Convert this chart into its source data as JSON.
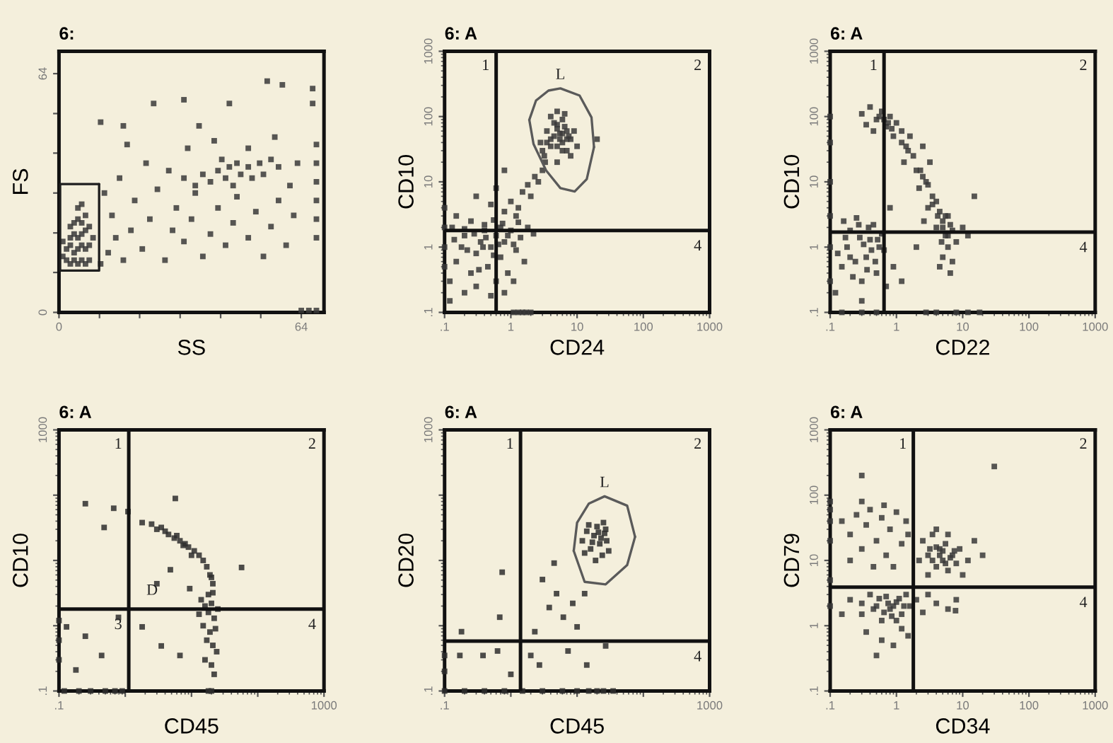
{
  "chart_data": [
    {
      "type": "scatter",
      "title": "6:",
      "xlabel": "SS",
      "ylabel": "FS",
      "xlim": [
        0,
        70
      ],
      "ylim": [
        0,
        70
      ],
      "xticks": [
        {
          "value": 0,
          "label": "0"
        },
        {
          "value": 10.7,
          "label": null
        },
        {
          "value": 21.3,
          "label": null
        },
        {
          "value": 32,
          "label": null
        },
        {
          "value": 42.7,
          "label": null
        },
        {
          "value": 53.3,
          "label": null
        },
        {
          "value": 64,
          "label": "64"
        }
      ],
      "yticks": [
        {
          "value": 0,
          "label": "0"
        },
        {
          "value": 10.7,
          "label": null
        },
        {
          "value": 21.3,
          "label": null
        },
        {
          "value": 32,
          "label": null
        },
        {
          "value": 42.7,
          "label": null
        },
        {
          "value": 53.3,
          "label": null
        },
        {
          "value": 64,
          "label": "64"
        }
      ],
      "series": [
        {
          "marker": "square",
          "color": "#3a3a3a",
          "x": [
            2,
            3,
            4,
            5,
            6,
            7,
            8,
            2,
            3,
            4,
            5,
            6,
            7,
            8,
            3,
            4,
            5,
            6,
            7,
            4,
            5,
            6,
            7,
            3,
            5,
            6,
            8,
            1,
            1,
            9,
            11,
            13,
            15,
            14,
            17,
            19,
            20,
            22,
            24,
            26,
            28,
            30,
            31,
            33,
            35,
            36,
            38,
            40,
            42,
            44,
            46,
            47,
            50,
            52,
            54,
            56,
            58,
            60,
            62,
            16,
            23,
            29,
            12,
            18,
            34,
            41,
            50,
            57,
            63,
            61,
            33,
            36,
            38,
            40,
            42,
            44,
            45,
            46,
            48,
            50,
            51,
            53,
            54,
            56,
            58,
            43,
            47,
            68,
            68,
            68,
            68,
            68,
            68,
            17,
            25,
            33,
            45,
            55,
            59,
            67,
            67,
            11,
            37,
            66,
            68,
            64
          ],
          "values": [
            14,
            13,
            14,
            13,
            14,
            13,
            14,
            17,
            18,
            16,
            17,
            18,
            17,
            18,
            20,
            21,
            20,
            21,
            22,
            24,
            25,
            24,
            26,
            23,
            28,
            29,
            23,
            15,
            19,
            20,
            13,
            16,
            20,
            26,
            14,
            22,
            30,
            17,
            25,
            33,
            14,
            22,
            28,
            19,
            25,
            32,
            15,
            21,
            28,
            18,
            24,
            31,
            20,
            27,
            15,
            23,
            30,
            18,
            26,
            36,
            40,
            38,
            32,
            45,
            44,
            46,
            44,
            47,
            40,
            34,
            36,
            34,
            37,
            35,
            38,
            36,
            39,
            34,
            37,
            39,
            36,
            40,
            37,
            41,
            39,
            41,
            40,
            20,
            25,
            30,
            35,
            40,
            45,
            50,
            56,
            57,
            56,
            62,
            61,
            56,
            60,
            51,
            50,
            0.5,
            0.5,
            0.5
          ]
        },
        {
          "type": "line",
          "line_style": "solid",
          "color": "#1e1e1e",
          "x": [
            0.3,
            0.3,
            10.6
          ],
          "values": [
            11.2,
            34.4,
            34.4
          ]
        },
        {
          "type": "line",
          "line_style": "solid",
          "color": "#1e1e1e",
          "x": [
            0.3,
            10.6,
            10.6
          ],
          "values": [
            11.2,
            11.2,
            34.4
          ]
        }
      ]
    },
    {
      "type": "scatter",
      "title": "6: A",
      "xlabel": "CD24",
      "ylabel": "CD10",
      "log": "xy",
      "xlim": [
        0.1,
        1000
      ],
      "ylim": [
        0.1,
        1000
      ],
      "xticks": [
        {
          "value": 0.1,
          "label": ".1"
        },
        1,
        10,
        100,
        1000
      ],
      "yticks": [
        {
          "value": 0.1,
          "label": ".1"
        },
        1,
        10,
        100,
        1000
      ],
      "series": [
        {
          "marker": "square",
          "color": "#3a3a3a",
          "x": [
            0.12,
            0.15,
            0.18,
            0.2,
            0.13,
            0.25,
            0.3,
            0.35,
            0.4,
            0.45,
            0.5,
            0.6,
            0.7,
            0.8,
            1.0,
            1.2,
            1.4,
            1.6,
            0.2,
            0.3,
            0.6,
            0.9,
            1.1,
            0.15,
            0.25,
            0.4,
            0.55,
            0.75,
            1.3,
            1.8,
            2.2,
            0.1,
            0.1,
            0.1,
            0.1,
            0.12,
            0.5,
            0.8,
            0.8,
            1.0,
            1.3,
            1.5,
            1.8,
            2.0,
            2.3,
            2.6,
            3.0,
            0.5,
            0.3,
            0.6,
            3.3,
            1.2,
            3,
            3.5,
            4,
            4.5,
            5,
            5.5,
            6,
            6.5,
            7,
            7.5,
            8,
            9,
            10,
            4,
            5,
            6,
            3.2,
            8,
            5,
            6.5,
            2.8,
            1.1,
            1.3,
            1.5,
            1.7,
            2.0,
            20,
            0.8,
            0.14,
            0.22,
            0.28,
            0.33,
            0.38,
            0.42,
            0.55,
            0.65,
            0.9,
            1.1,
            0.2,
            0.7,
            4.5,
            5,
            5.5,
            6,
            7,
            6,
            4,
            5,
            7,
            3.5
          ],
          "values": [
            0.3,
            0.6,
            1.0,
            1.5,
            2.0,
            0.4,
            0.8,
            1.2,
            1.8,
            0.5,
            1.0,
            1.5,
            0.7,
            1.2,
            1.8,
            0.9,
            1.4,
            0.6,
            0.2,
            0.25,
            0.3,
            0.4,
            0.3,
            3,
            2.5,
            2.2,
            2.6,
            2.3,
            2.4,
            2.0,
            1.6,
            0.5,
            1.0,
            2.0,
            4.0,
            0.15,
            0.18,
            0.2,
            3.5,
            5,
            4,
            7,
            9,
            6,
            12,
            10,
            15,
            4.5,
            6,
            8,
            20,
            3,
            30,
            60,
            45,
            80,
            35,
            55,
            40,
            70,
            30,
            50,
            45,
            60,
            35,
            100,
            120,
            90,
            25,
            25,
            20,
            110,
            40,
            0.1,
            0.1,
            0.1,
            0.1,
            0.1,
            45,
            15,
            1.3,
            0.9,
            1.6,
            0.45,
            1.0,
            1.4,
            0.75,
            1.1,
            1.5,
            1.1,
            1.9,
            2.0,
            50,
            65,
            45,
            55,
            45,
            30,
            35,
            75,
            60,
            40
          ]
        },
        {
          "type": "line",
          "line_style": "solid",
          "color": "#5a5a5a",
          "x": [
            1.9,
            2.4,
            3.7,
            5.6,
            10.9,
            16.5,
            18
          ],
          "values": [
            89,
            176,
            250,
            270,
            210,
            97,
            34
          ]
        },
        {
          "type": "line",
          "line_style": "solid",
          "color": "#5a5a5a",
          "x": [
            1.9,
            2.2,
            3.4,
            5.6,
            9.2,
            14,
            18
          ],
          "values": [
            89,
            38,
            15,
            8,
            7.1,
            11,
            34
          ]
        }
      ],
      "ref_lines": [
        {
          "axis": "x",
          "value": 0.6,
          "color": "#111111"
        },
        {
          "axis": "y",
          "value": 1.8,
          "color": "#111111"
        }
      ],
      "annotations": [
        {
          "text": "L",
          "x": 5.6,
          "y": 270
        },
        "1",
        "2",
        "4"
      ]
    },
    {
      "type": "scatter",
      "title": "6: A",
      "xlabel": "CD22",
      "ylabel": "CD10",
      "log": "xy",
      "xlim": [
        0.1,
        1000
      ],
      "ylim": [
        0.1,
        1000
      ],
      "xticks": [
        {
          "value": 0.1,
          "label": ".1"
        },
        1,
        10,
        100,
        1000
      ],
      "yticks": [
        {
          "value": 0.1,
          "label": ".1"
        },
        1,
        10,
        100,
        1000
      ],
      "series": [
        {
          "marker": "square",
          "color": "#3a3a3a",
          "x": [
            0.12,
            0.15,
            0.18,
            0.2,
            0.25,
            0.3,
            0.35,
            0.4,
            0.45,
            0.5,
            0.55,
            0.6,
            0.22,
            0.28,
            0.38,
            0.16,
            0.48,
            0.3,
            0.2,
            0.65,
            0.7,
            0.9,
            0.1,
            0.1,
            0.1,
            0.1,
            0.1,
            0.1,
            0.3,
            0.4,
            0.5,
            0.6,
            0.7,
            0.8,
            0.45,
            1.0,
            0.9,
            1.2,
            0.35,
            1.2,
            1.5,
            1.3,
            1.8,
            2.0,
            2.5,
            2.2,
            3.0,
            3.5,
            3.0,
            4.0,
            4.5,
            5.0,
            4.0,
            6.0,
            5.5,
            7.0,
            6.0,
            5.0,
            7.0,
            8,
            4.5,
            10,
            12,
            6.5,
            1.6,
            2.5,
            3.2,
            0.15,
            0.3,
            0.5,
            2.8,
            4,
            8,
            12,
            18,
            0.8,
            1.2,
            2,
            15,
            2.6,
            0.13,
            0.17,
            0.24,
            0.32,
            0.42,
            0.52,
            0.27,
            0.36,
            0.55,
            0.65,
            0.75,
            0.85,
            3.5,
            4.2,
            5,
            5.5,
            6.5,
            4.8,
            6,
            2.8,
            2.3,
            1.4
          ],
          "values": [
            0.2,
            0.5,
            1.0,
            1.8,
            2.8,
            0.3,
            0.7,
            1.3,
            2.2,
            0.4,
            1.0,
            1.6,
            0.35,
            1.4,
            2.0,
            2.5,
            0.6,
            0.15,
            0.7,
            0.9,
            0.25,
            0.5,
            0.3,
            1,
            3,
            10,
            40,
            100,
            110,
            140,
            90,
            120,
            70,
            100,
            60,
            80,
            50,
            60,
            75,
            40,
            30,
            20,
            25,
            15,
            12,
            8,
            9,
            6,
            4,
            5,
            3.5,
            2.5,
            2.0,
            3,
            1.5,
            1.8,
            1.0,
            0.7,
            0.6,
            1.2,
            0.5,
            2,
            1.5,
            0.4,
            50,
            35,
            20,
            0.1,
            0.1,
            0.1,
            0.1,
            0.1,
            0.1,
            0.1,
            0.1,
            4,
            0.3,
            1,
            6,
            2.5,
            0.8,
            1.4,
            0.6,
            1.1,
            0.9,
            1.3,
            2.2,
            0.45,
            100,
            90,
            80,
            65,
            4.5,
            3,
            2,
            3,
            2.2,
            1.2,
            1.5,
            10,
            15,
            35
          ]
        }
      ],
      "ref_lines": [
        {
          "axis": "x",
          "value": 0.65,
          "color": "#111111"
        },
        {
          "axis": "y",
          "value": 1.7,
          "color": "#111111"
        }
      ],
      "annotations": [
        "1",
        "2",
        "4"
      ]
    },
    {
      "type": "scatter",
      "title": "6: A",
      "xlabel": "CD45",
      "ylabel": "CD10",
      "log": "xy",
      "xlim": [
        0.1,
        1000
      ],
      "ylim": [
        0.1,
        1000
      ],
      "xticks": [
        {
          "value": 0.1,
          "label": ".1"
        },
        {
          "value": 1,
          "label": null
        },
        {
          "value": 10,
          "label": null
        },
        {
          "value": 100,
          "label": null
        },
        {
          "value": 1000,
          "label": "1000"
        }
      ],
      "yticks": [
        {
          "value": 0.1,
          "label": ".1"
        },
        {
          "value": 1,
          "label": null
        },
        {
          "value": 10,
          "label": null
        },
        {
          "value": 100,
          "label": null
        },
        {
          "value": 1000,
          "label": "1000"
        }
      ],
      "series": [
        {
          "marker": "square",
          "color": "#2e2e2e",
          "x": [
            14,
            16,
            18,
            20,
            22,
            15,
            19,
            23,
            17,
            21,
            24,
            16,
            20,
            22,
            25,
            13,
            18,
            21,
            1.8,
            2.5,
            3.0,
            3.5,
            4.5,
            5.5,
            6.7,
            8,
            9,
            11,
            13,
            15,
            17,
            19,
            21,
            20,
            4,
            6,
            7.5,
            10,
            0.25,
            0.48,
            0.67,
            1.1,
            5.7,
            3.0,
            4.8,
            9.4,
            1.8,
            3.5,
            6.7,
            57,
            0.13,
            0.25,
            0.44,
            0.79,
            0.18,
            0.12,
            0.2,
            0.3,
            0.5,
            0.7,
            0.9,
            20,
            18,
            0.1,
            0.1,
            0.1
          ],
          "values": [
            2.5,
            2.0,
            1.6,
            2.2,
            1.3,
            1.0,
            0.8,
            0.9,
            0.6,
            0.5,
            0.4,
            0.3,
            0.25,
            0.18,
            1.8,
            1.5,
            3.0,
            3.2,
            38,
            36,
            30,
            32,
            25,
            22,
            20,
            18,
            16,
            14,
            12,
            10,
            8,
            6,
            4.4,
            5.5,
            28,
            24,
            17,
            12,
            74,
            32,
            63,
            56,
            89,
            4.4,
            7.2,
            3.7,
            0.96,
            0.49,
            0.35,
            7.8,
            0.96,
            0.69,
            0.35,
            1.34,
            0.21,
            0.1,
            0.1,
            0.1,
            0.1,
            0.1,
            0.1,
            0.1,
            0.1,
            0.3,
            0.6,
            1.2
          ]
        }
      ],
      "ref_lines": [
        {
          "axis": "x",
          "value": 1.13,
          "color": "#111111"
        },
        {
          "axis": "y",
          "value": 1.8,
          "color": "#111111"
        }
      ],
      "annotations": [
        "1",
        "2",
        "3",
        "4",
        {
          "text": "D",
          "x": 1.13,
          "y": 3.4
        }
      ]
    },
    {
      "type": "scatter",
      "title": "6: A",
      "xlabel": "CD45",
      "ylabel": "CD20",
      "log": "xy",
      "xlim": [
        0.1,
        1000
      ],
      "ylim": [
        0.1,
        1000
      ],
      "xticks": [
        {
          "value": 0.1,
          "label": ".1"
        },
        {
          "value": 1,
          "label": null
        },
        {
          "value": 10,
          "label": null
        },
        {
          "value": 100,
          "label": null
        },
        {
          "value": 1000,
          "label": "1000"
        }
      ],
      "yticks": [
        {
          "value": 0.1,
          "label": ".1"
        },
        {
          "value": 1,
          "label": null
        },
        {
          "value": 10,
          "label": null
        },
        {
          "value": 100,
          "label": null
        },
        {
          "value": 1000,
          "label": "1000"
        }
      ],
      "series": [
        {
          "marker": "square",
          "color": "#2e2e2e",
          "x": [
            12,
            14,
            16,
            18,
            20,
            22,
            24,
            26,
            28,
            30,
            15,
            19,
            25,
            17,
            21,
            23,
            13,
            27,
            4.5,
            3.0,
            4.9,
            6.2,
            8.6,
            10,
            3.8,
            13,
            2.3,
            0.74,
            0.68,
            0.18,
            0.17,
            0.38,
            0.63,
            2.0,
            2.7,
            7.3,
            14,
            27,
            1.0,
            0.1,
            0.2,
            0.4,
            0.8,
            1.5,
            3,
            6,
            10,
            15,
            20,
            25,
            35,
            0.1,
            0.1
          ],
          "values": [
            20,
            28,
            15,
            24,
            33,
            18,
            12,
            26,
            20,
            14,
            35,
            10,
            38,
            19,
            27,
            22,
            13,
            30,
            9.1,
            5.1,
            3.1,
            1.35,
            2.2,
            0.96,
            1.9,
            3.1,
            0.81,
            6.6,
            1.35,
            0.81,
            0.35,
            0.35,
            0.41,
            0.35,
            0.25,
            0.41,
            0.25,
            0.49,
            0.18,
            0.1,
            0.1,
            0.1,
            0.1,
            0.1,
            0.1,
            0.1,
            0.1,
            0.1,
            0.1,
            0.1,
            0.1,
            0.2,
            0.35
          ]
        },
        {
          "type": "line",
          "line_style": "solid",
          "color": "#5a5a5a",
          "x": [
            8.9,
            10,
            15,
            26,
            57,
            75
          ],
          "values": [
            14,
            38,
            74,
            96,
            69,
            23
          ]
        },
        {
          "type": "line",
          "line_style": "solid",
          "color": "#5a5a5a",
          "x": [
            8.9,
            13,
            27,
            57,
            75
          ],
          "values": [
            14,
            4.7,
            4.3,
            8.5,
            23
          ]
        }
      ],
      "ref_lines": [
        {
          "axis": "x",
          "value": 1.4,
          "color": "#111111"
        },
        {
          "axis": "y",
          "value": 0.58,
          "color": "#111111"
        }
      ],
      "annotations": [
        {
          "text": "L",
          "x": 26,
          "y": 96
        },
        "1",
        "2",
        "4"
      ]
    },
    {
      "type": "scatter",
      "title": "6: A",
      "xlabel": "CD34",
      "ylabel": "CD79",
      "log": "xy",
      "xlim": [
        0.1,
        1000
      ],
      "ylim": [
        0.1,
        1000
      ],
      "xticks": [
        {
          "value": 0.1,
          "label": ".1"
        },
        1,
        10,
        100,
        1000
      ],
      "yticks": [
        {
          "value": 0.1,
          "label": ".1"
        },
        1,
        10,
        100,
        1000
      ],
      "series": [
        {
          "marker": "square",
          "color": "#3a3a3a",
          "x": [
            0.15,
            0.2,
            0.25,
            0.3,
            0.35,
            0.4,
            0.5,
            0.6,
            0.7,
            0.8,
            1.0,
            1.2,
            1.4,
            0.45,
            0.2,
            0.9,
            1.5,
            0.3,
            0.65,
            2.5,
            3,
            3.5,
            4,
            4.5,
            5,
            5.5,
            6,
            7,
            8,
            9,
            4,
            3,
            10,
            2.2,
            6,
            12,
            15,
            20,
            0.2,
            0.3,
            0.4,
            0.5,
            0.6,
            0.7,
            0.8,
            1.0,
            1.2,
            1.4,
            1.6,
            0.35,
            0.6,
            0.9,
            1.2,
            0.15,
            0.5,
            1.5,
            2,
            2.5,
            3,
            4,
            6,
            8,
            0.1,
            0.1,
            0.1,
            0.1,
            0.1,
            0.1,
            30,
            7.8,
            0.3,
            0.3,
            0.45,
            0.55,
            0.65,
            0.75,
            0.9,
            1.1,
            1.3,
            0.85,
            1.0,
            3.5,
            4.5,
            5,
            4,
            5.5,
            6.5,
            3.2,
            7.5
          ],
          "values": [
            40,
            25,
            50,
            15,
            35,
            60,
            20,
            45,
            12,
            30,
            55,
            18,
            40,
            8,
            10,
            8,
            25,
            80,
            70,
            20,
            12,
            25,
            8,
            15,
            10,
            18,
            7,
            12,
            9,
            15,
            30,
            6,
            6,
            10,
            25,
            10,
            20,
            12,
            2.5,
            1.5,
            3,
            2,
            1.2,
            2.8,
            1.8,
            2.3,
            1.5,
            3,
            2,
            0.8,
            0.6,
            0.5,
            0.9,
            1.5,
            0.35,
            0.7,
            2.5,
            1.6,
            3,
            2.2,
            1.8,
            2.5,
            40,
            60,
            80,
            20,
            5,
            2,
            275,
            1.7,
            200,
            2.2,
            1.8,
            2.6,
            1.6,
            2.2,
            2.0,
            2.6,
            2.0,
            1.4,
            1.2,
            10,
            12,
            14,
            16,
            9,
            11,
            15,
            14
          ]
        }
      ],
      "ref_lines": [
        {
          "axis": "x",
          "value": 1.8,
          "color": "#111111"
        },
        {
          "axis": "y",
          "value": 3.9,
          "color": "#111111"
        }
      ],
      "annotations": [
        "1",
        "2",
        "4"
      ]
    }
  ]
}
